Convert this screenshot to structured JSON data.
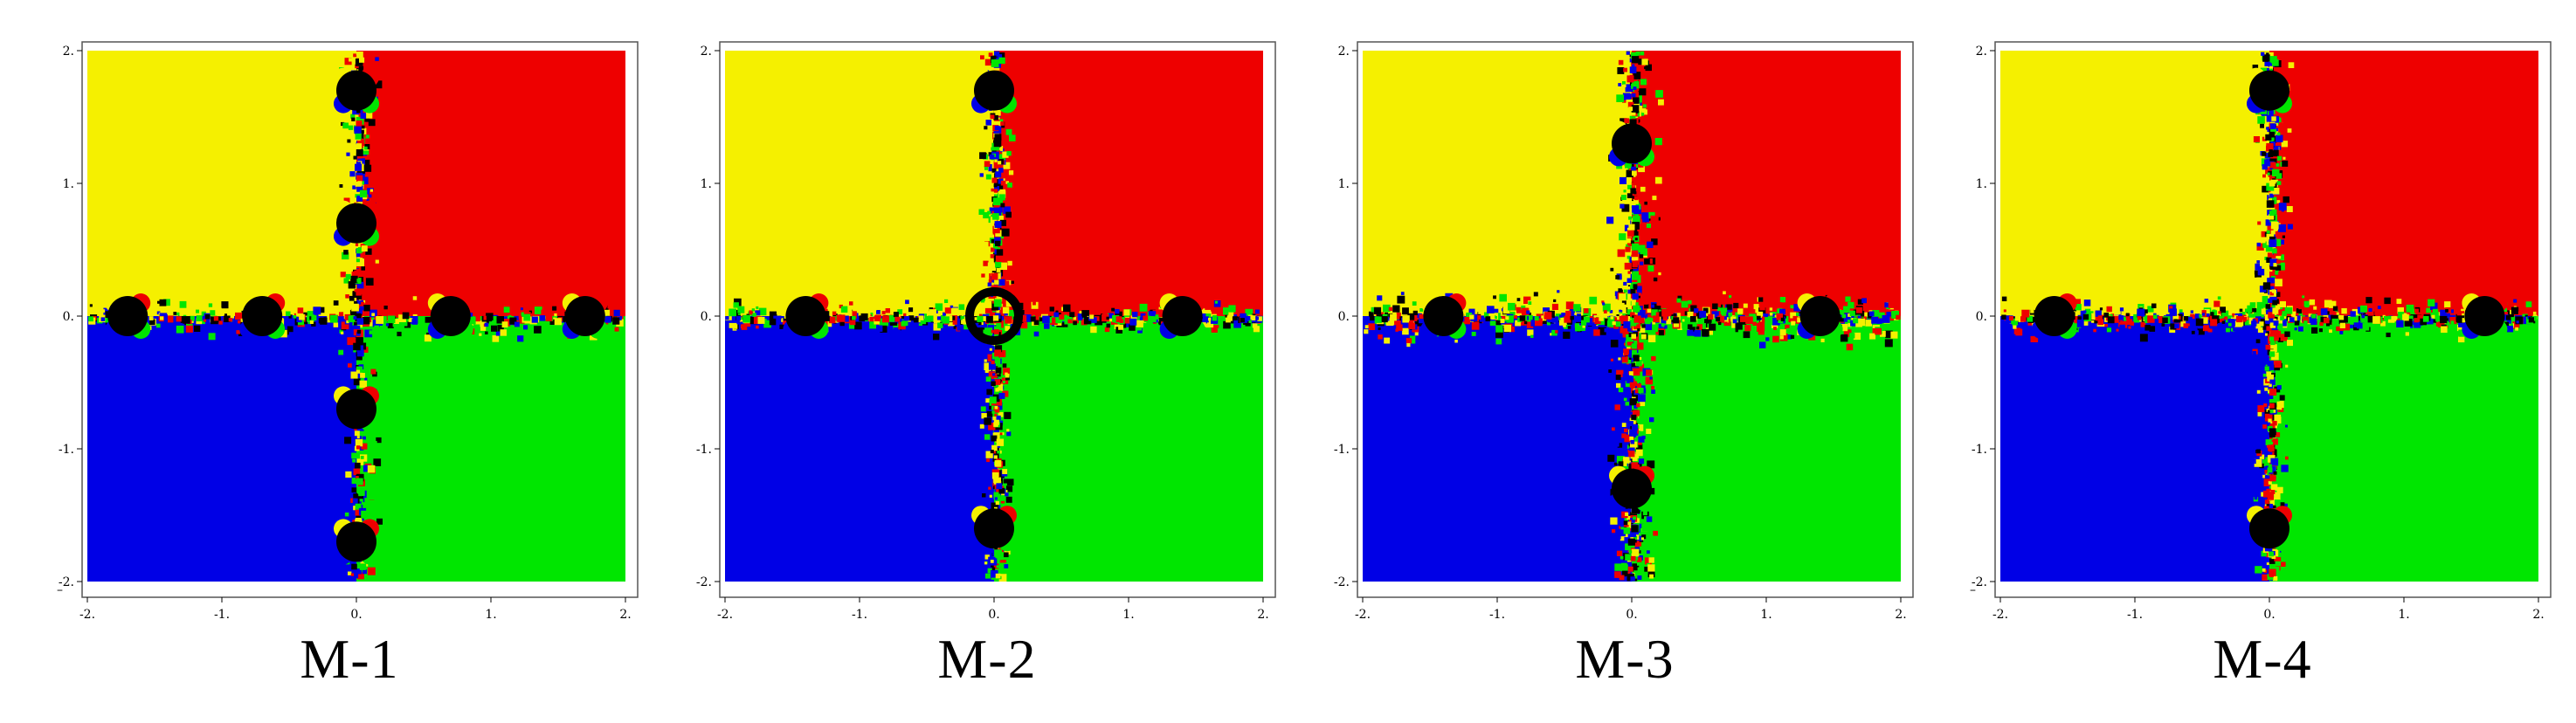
{
  "colors": {
    "yellow": "#f5f000",
    "red": "#ee0000",
    "blue": "#0000e6",
    "green": "#00e600",
    "black": "#000000"
  },
  "chart_data": [
    {
      "type": "heatmap",
      "label": "M-1",
      "xlim": [
        -2,
        2
      ],
      "ylim": [
        -2,
        2
      ],
      "x_ticks": [
        "-2.",
        "-1.",
        "0.",
        "1.",
        "2."
      ],
      "y_ticks": [
        "2.",
        "1.",
        "0.",
        "-1.",
        "-2."
      ],
      "bottom_left_tick": "–",
      "quadrant_colors": {
        "top_left": "yellow",
        "top_right": "red",
        "bottom_left": "blue",
        "bottom_right": "green"
      },
      "black_basins": [
        [
          -1.7,
          0
        ],
        [
          -0.7,
          0
        ],
        [
          0.7,
          0
        ],
        [
          1.7,
          0
        ],
        [
          0,
          1.7
        ],
        [
          0,
          0.7
        ],
        [
          0,
          -0.7
        ],
        [
          0,
          -1.7
        ]
      ]
    },
    {
      "type": "heatmap",
      "label": "M-2",
      "xlim": [
        -2,
        2
      ],
      "ylim": [
        -2,
        2
      ],
      "x_ticks": [
        "-2.",
        "-1.",
        "0.",
        "1.",
        "2."
      ],
      "y_ticks": [
        "2.",
        "1.",
        "0.",
        "-1.",
        "-2."
      ],
      "bottom_left_tick": "",
      "quadrant_colors": {
        "top_left": "yellow",
        "top_right": "red",
        "bottom_left": "blue",
        "bottom_right": "green"
      },
      "black_basins": [
        [
          0,
          1.7
        ],
        [
          0,
          -1.6
        ],
        [
          1.4,
          0
        ],
        [
          -1.4,
          0
        ]
      ],
      "black_ring": [
        0,
        0
      ]
    },
    {
      "type": "heatmap",
      "label": "M-3",
      "xlim": [
        -2,
        2
      ],
      "ylim": [
        -2,
        2
      ],
      "x_ticks": [
        "-2.",
        "-1.",
        "0.",
        "1.",
        "2."
      ],
      "y_ticks": [
        "2.",
        "1.",
        "0.",
        "-1.",
        "-2."
      ],
      "bottom_left_tick": "",
      "quadrant_colors": {
        "top_left": "yellow",
        "top_right": "red",
        "bottom_left": "blue",
        "bottom_right": "green"
      },
      "black_basins": [
        [
          -1.4,
          0
        ],
        [
          1.4,
          0
        ],
        [
          0,
          1.3
        ],
        [
          0,
          -1.3
        ]
      ]
    },
    {
      "type": "heatmap",
      "label": "M-4",
      "xlim": [
        -2,
        2
      ],
      "ylim": [
        -2,
        2
      ],
      "x_ticks": [
        "-2.",
        "-1.",
        "0.",
        "1.",
        "2."
      ],
      "y_ticks": [
        "2.",
        "1.",
        "0.",
        "-1.",
        "-2."
      ],
      "bottom_left_tick": "–",
      "quadrant_colors": {
        "top_left": "yellow",
        "top_right": "red",
        "bottom_left": "blue",
        "bottom_right": "green"
      },
      "black_basins": [
        [
          0,
          1.7
        ],
        [
          0,
          -1.6
        ],
        [
          1.6,
          0
        ],
        [
          -1.6,
          0
        ]
      ]
    }
  ]
}
